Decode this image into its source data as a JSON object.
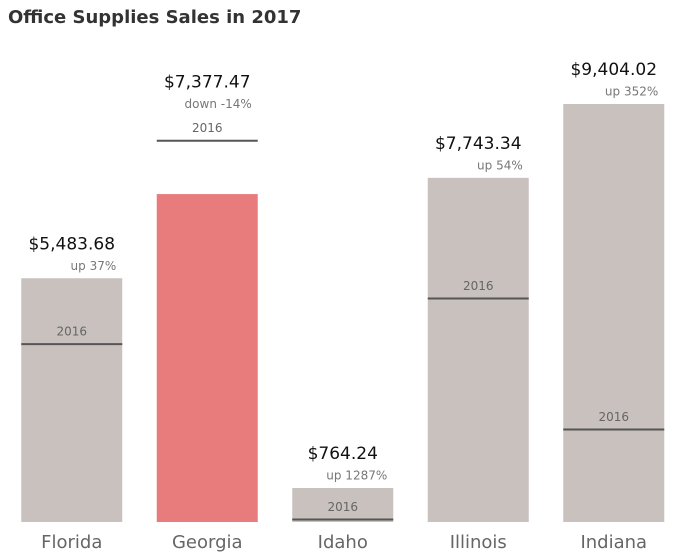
{
  "chart_data": {
    "type": "bar",
    "title": "Office Supplies Sales in 2017",
    "categories": [
      "Florida",
      "Georgia",
      "Idaho",
      "Illinois",
      "Indiana"
    ],
    "values": [
      5483.68,
      7377.47,
      764.24,
      7743.34,
      9404.02
    ],
    "value_labels": [
      "$5,483.68",
      "$7,377.47",
      "$764.24",
      "$7,743.34",
      "$9,404.02"
    ],
    "change_labels": [
      "up 37%",
      "down -14%",
      "up 1287%",
      "up 54%",
      "up 352%"
    ],
    "reference_label": "2016",
    "reference_values": [
      4003,
      8578,
      55,
      5028,
      2081
    ],
    "color": "#c9c1bd",
    "decrease_color": "#e87b7b",
    "reference_color": "#555555"
  }
}
